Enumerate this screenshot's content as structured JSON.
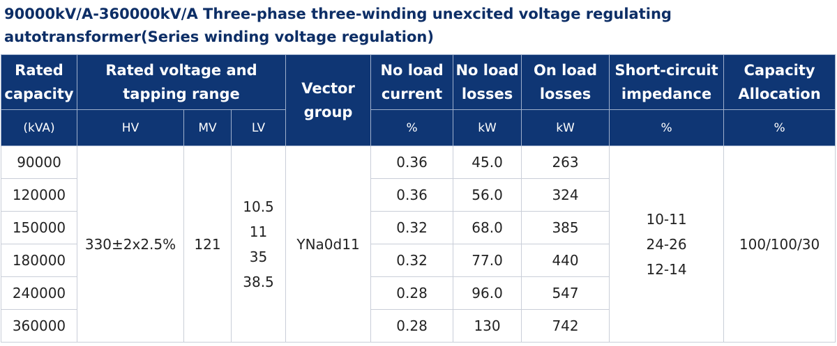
{
  "title_line1": "90000kV/A-360000kV/A Three-phase three-winding unexcited voltage regulating",
  "title_line2": "autotransformer(Series winding voltage regulation)",
  "headers": {
    "rated_capacity": [
      "Rated",
      "capacity"
    ],
    "rated_voltage": [
      "Rated voltage and",
      "tapping range"
    ],
    "vector_group": [
      "Vector",
      "group"
    ],
    "no_load_current": [
      "No load",
      "current"
    ],
    "no_load_losses": [
      "No load",
      "losses"
    ],
    "on_load_losses": [
      "On load",
      "losses"
    ],
    "short_circuit": [
      "Short-circuit",
      "impedance"
    ],
    "capacity_alloc": [
      "Capacity",
      "Allocation"
    ]
  },
  "units": {
    "capacity": "(kVA)",
    "hv": "HV",
    "mv": "MV",
    "lv": "LV",
    "current": "%",
    "no_load_losses": "kW",
    "on_load_losses": "kW",
    "impedance": "%",
    "allocation": "%"
  },
  "merged": {
    "hv": "330±2x2.5%",
    "mv": "121",
    "lv": [
      "10.5",
      "11",
      "35",
      "38.5"
    ],
    "vector_group": "YNa0d11",
    "impedance": [
      "10-11",
      "24-26",
      "12-14"
    ],
    "allocation": "100/100/30"
  },
  "rows": [
    {
      "capacity": "90000",
      "current": "0.36",
      "no_load_losses": "45.0",
      "on_load_losses": "263"
    },
    {
      "capacity": "120000",
      "current": "0.36",
      "no_load_losses": "56.0",
      "on_load_losses": "324"
    },
    {
      "capacity": "150000",
      "current": "0.32",
      "no_load_losses": "68.0",
      "on_load_losses": "385"
    },
    {
      "capacity": "180000",
      "current": "0.32",
      "no_load_losses": "77.0",
      "on_load_losses": "440"
    },
    {
      "capacity": "240000",
      "current": "0.28",
      "no_load_losses": "96.0",
      "on_load_losses": "547"
    },
    {
      "capacity": "360000",
      "current": "0.28",
      "no_load_losses": "130",
      "on_load_losses": "742"
    }
  ]
}
